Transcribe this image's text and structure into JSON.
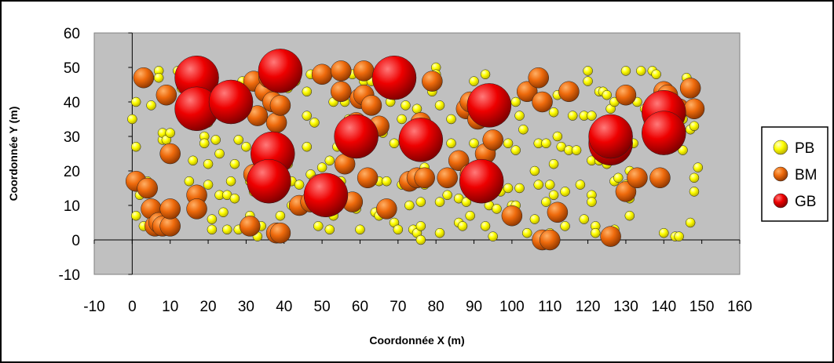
{
  "chart_data": {
    "type": "scatter",
    "title": "",
    "xlabel": "Coordonnée X (m)",
    "ylabel": "Coordonnée Y (m)",
    "xlim": [
      -10,
      160
    ],
    "ylim": [
      -10,
      60
    ],
    "xticks": [
      -10,
      0,
      10,
      20,
      30,
      40,
      50,
      60,
      70,
      80,
      90,
      100,
      110,
      120,
      130,
      140,
      150,
      160
    ],
    "yticks": [
      -10,
      0,
      10,
      20,
      30,
      40,
      50,
      60
    ],
    "grid": false,
    "legend_position": "right",
    "plot_background": "#c0c0c0",
    "series": [
      {
        "name": "PB",
        "color": "#ffff00",
        "points": [
          [
            0,
            35
          ],
          [
            1,
            40
          ],
          [
            1,
            27
          ],
          [
            1,
            7
          ],
          [
            2,
            13
          ],
          [
            3,
            15
          ],
          [
            4,
            17
          ],
          [
            4,
            14
          ],
          [
            5,
            39
          ],
          [
            5,
            14
          ],
          [
            3,
            4
          ],
          [
            7,
            49
          ],
          [
            7,
            47
          ],
          [
            8,
            29
          ],
          [
            8,
            31
          ],
          [
            9,
            29
          ],
          [
            10,
            31
          ],
          [
            11,
            24
          ],
          [
            12,
            49
          ],
          [
            13,
            44
          ],
          [
            15,
            17
          ],
          [
            16,
            23
          ],
          [
            19,
            30
          ],
          [
            19,
            34
          ],
          [
            19,
            28
          ],
          [
            20,
            34
          ],
          [
            20,
            22
          ],
          [
            20,
            16
          ],
          [
            21,
            6
          ],
          [
            21,
            3
          ],
          [
            22,
            29
          ],
          [
            23,
            25
          ],
          [
            23,
            13
          ],
          [
            24,
            8
          ],
          [
            25,
            13
          ],
          [
            25,
            3
          ],
          [
            26,
            17
          ],
          [
            27,
            22
          ],
          [
            27,
            12
          ],
          [
            28,
            29
          ],
          [
            28,
            3
          ],
          [
            29,
            46
          ],
          [
            30,
            39
          ],
          [
            30,
            27
          ],
          [
            31,
            17
          ],
          [
            31,
            7
          ],
          [
            32,
            14
          ],
          [
            33,
            1
          ],
          [
            33,
            23
          ],
          [
            34,
            19
          ],
          [
            34,
            4
          ],
          [
            35,
            13
          ],
          [
            36,
            44
          ],
          [
            38,
            40
          ],
          [
            38,
            28
          ],
          [
            39,
            7
          ],
          [
            40,
            40
          ],
          [
            41,
            44
          ],
          [
            41,
            22
          ],
          [
            42,
            17
          ],
          [
            42,
            10
          ],
          [
            43,
            46
          ],
          [
            44,
            16
          ],
          [
            46,
            27
          ],
          [
            46,
            36
          ],
          [
            46,
            43
          ],
          [
            47,
            48
          ],
          [
            47,
            19
          ],
          [
            48,
            34
          ],
          [
            48,
            17
          ],
          [
            49,
            4
          ],
          [
            50,
            21
          ],
          [
            50,
            48
          ],
          [
            51,
            48
          ],
          [
            52,
            23
          ],
          [
            52,
            3
          ],
          [
            53,
            40
          ],
          [
            53,
            7
          ],
          [
            54,
            27
          ],
          [
            55,
            17
          ],
          [
            56,
            40
          ],
          [
            57,
            35
          ],
          [
            57,
            27
          ],
          [
            58,
            48
          ],
          [
            59,
            40
          ],
          [
            59,
            12
          ],
          [
            59,
            9
          ],
          [
            60,
            3
          ],
          [
            61,
            46
          ],
          [
            62,
            28
          ],
          [
            63,
            46
          ],
          [
            64,
            8
          ],
          [
            65,
            17
          ],
          [
            65,
            7
          ],
          [
            66,
            31
          ],
          [
            66,
            46
          ],
          [
            67,
            17
          ],
          [
            68,
            40
          ],
          [
            69,
            5
          ],
          [
            69,
            28
          ],
          [
            70,
            3
          ],
          [
            71,
            16
          ],
          [
            71,
            35
          ],
          [
            72,
            39
          ],
          [
            72,
            29
          ],
          [
            72,
            17
          ],
          [
            73,
            10
          ],
          [
            74,
            3
          ],
          [
            75,
            38
          ],
          [
            75,
            2
          ],
          [
            76,
            11
          ],
          [
            76,
            4
          ],
          [
            76,
            0
          ],
          [
            77,
            21
          ],
          [
            77,
            16
          ],
          [
            79,
            47
          ],
          [
            79,
            43
          ],
          [
            80,
            50
          ],
          [
            80,
            48
          ],
          [
            81,
            39
          ],
          [
            81,
            11
          ],
          [
            81,
            2
          ],
          [
            82,
            18
          ],
          [
            83,
            13
          ],
          [
            84,
            35
          ],
          [
            84,
            28
          ],
          [
            86,
            12
          ],
          [
            86,
            5
          ],
          [
            87,
            4
          ],
          [
            88,
            16
          ],
          [
            88,
            11
          ],
          [
            89,
            7
          ],
          [
            90,
            28
          ],
          [
            90,
            46
          ],
          [
            91,
            41
          ],
          [
            92,
            35
          ],
          [
            93,
            48
          ],
          [
            93,
            22
          ],
          [
            93,
            4
          ],
          [
            94,
            10
          ],
          [
            95,
            1
          ],
          [
            95,
            27
          ],
          [
            96,
            9
          ],
          [
            97,
            14
          ],
          [
            99,
            28
          ],
          [
            99,
            15
          ],
          [
            100,
            10
          ],
          [
            101,
            40
          ],
          [
            101,
            26
          ],
          [
            101,
            10
          ],
          [
            102,
            36
          ],
          [
            102,
            15
          ],
          [
            103,
            32
          ],
          [
            104,
            2
          ],
          [
            106,
            20
          ],
          [
            106,
            6
          ],
          [
            107,
            28
          ],
          [
            107,
            16
          ],
          [
            108,
            48
          ],
          [
            108,
            40
          ],
          [
            109,
            28
          ],
          [
            109,
            11
          ],
          [
            110,
            16
          ],
          [
            110,
            2
          ],
          [
            111,
            22
          ],
          [
            111,
            37
          ],
          [
            111,
            13
          ],
          [
            112,
            42
          ],
          [
            112,
            30
          ],
          [
            113,
            27
          ],
          [
            114,
            4
          ],
          [
            114,
            14
          ],
          [
            115,
            26
          ],
          [
            116,
            36
          ],
          [
            116,
            42
          ],
          [
            117,
            26
          ],
          [
            118,
            16
          ],
          [
            119,
            6
          ],
          [
            119,
            36
          ],
          [
            120,
            46
          ],
          [
            120,
            49
          ],
          [
            121,
            36
          ],
          [
            121,
            23
          ],
          [
            121,
            13
          ],
          [
            121,
            11
          ],
          [
            122,
            4
          ],
          [
            122,
            2
          ],
          [
            123,
            23
          ],
          [
            123,
            43
          ],
          [
            124,
            43
          ],
          [
            125,
            42
          ],
          [
            125,
            22
          ],
          [
            126,
            38
          ],
          [
            126,
            30
          ],
          [
            127,
            17
          ],
          [
            127,
            3
          ],
          [
            127,
            40
          ],
          [
            128,
            18
          ],
          [
            130,
            49
          ],
          [
            130,
            16
          ],
          [
            131,
            20
          ],
          [
            131,
            7
          ],
          [
            131,
            12
          ],
          [
            132,
            28
          ],
          [
            133,
            40
          ],
          [
            134,
            49
          ],
          [
            135,
            38
          ],
          [
            136,
            34
          ],
          [
            137,
            49
          ],
          [
            138,
            33
          ],
          [
            138,
            48
          ],
          [
            139,
            42
          ],
          [
            140,
            2
          ],
          [
            141,
            29
          ],
          [
            142,
            41
          ],
          [
            143,
            1
          ],
          [
            144,
            1
          ],
          [
            145,
            35
          ],
          [
            145,
            26
          ],
          [
            146,
            47
          ],
          [
            147,
            32
          ],
          [
            147,
            5
          ],
          [
            148,
            14
          ],
          [
            148,
            33
          ],
          [
            148,
            18
          ],
          [
            149,
            21
          ]
        ]
      },
      {
        "name": "BM",
        "color": "#ff6600",
        "points": [
          [
            1,
            17
          ],
          [
            3,
            47
          ],
          [
            4,
            15
          ],
          [
            5,
            9
          ],
          [
            6,
            4
          ],
          [
            7,
            5
          ],
          [
            8,
            4
          ],
          [
            9,
            42
          ],
          [
            10,
            4
          ],
          [
            10,
            9
          ],
          [
            10,
            25
          ],
          [
            16,
            39
          ],
          [
            17,
            13
          ],
          [
            17,
            9
          ],
          [
            31,
            4
          ],
          [
            32,
            19
          ],
          [
            32,
            46
          ],
          [
            33,
            36
          ],
          [
            35,
            43
          ],
          [
            36,
            47
          ],
          [
            37,
            40
          ],
          [
            38,
            34
          ],
          [
            38,
            2
          ],
          [
            39,
            39
          ],
          [
            39,
            2
          ],
          [
            44,
            10
          ],
          [
            47,
            11
          ],
          [
            49,
            16
          ],
          [
            50,
            48
          ],
          [
            50,
            15
          ],
          [
            55,
            49
          ],
          [
            55,
            43
          ],
          [
            56,
            22
          ],
          [
            58,
            11
          ],
          [
            59,
            34
          ],
          [
            60,
            41
          ],
          [
            61,
            42
          ],
          [
            61,
            49
          ],
          [
            62,
            18
          ],
          [
            63,
            39
          ],
          [
            65,
            33
          ],
          [
            67,
            9
          ],
          [
            73,
            17
          ],
          [
            75,
            18
          ],
          [
            76,
            34
          ],
          [
            77,
            18
          ],
          [
            79,
            46
          ],
          [
            83,
            18
          ],
          [
            86,
            23
          ],
          [
            88,
            38
          ],
          [
            89,
            40
          ],
          [
            89,
            19
          ],
          [
            91,
            35
          ],
          [
            93,
            25
          ],
          [
            94,
            37
          ],
          [
            95,
            29
          ],
          [
            100,
            7
          ],
          [
            104,
            43
          ],
          [
            107,
            47
          ],
          [
            108,
            40
          ],
          [
            108,
            0
          ],
          [
            110,
            0
          ],
          [
            112,
            8
          ],
          [
            115,
            43
          ],
          [
            126,
            1
          ],
          [
            130,
            42
          ],
          [
            130,
            14
          ],
          [
            133,
            18
          ],
          [
            139,
            18
          ],
          [
            140,
            43
          ],
          [
            141,
            42
          ],
          [
            144,
            38
          ],
          [
            147,
            44
          ],
          [
            148,
            38
          ]
        ]
      },
      {
        "name": "GB",
        "color": "#ff0000",
        "points": [
          [
            17,
            47
          ],
          [
            17,
            38
          ],
          [
            26,
            40
          ],
          [
            37,
            25
          ],
          [
            36,
            17
          ],
          [
            39,
            49
          ],
          [
            51,
            13
          ],
          [
            59,
            30
          ],
          [
            69,
            47
          ],
          [
            76,
            29
          ],
          [
            92,
            17
          ],
          [
            94,
            39
          ],
          [
            126,
            28
          ],
          [
            126,
            30
          ],
          [
            140,
            37
          ],
          [
            140,
            31
          ]
        ]
      }
    ]
  }
}
